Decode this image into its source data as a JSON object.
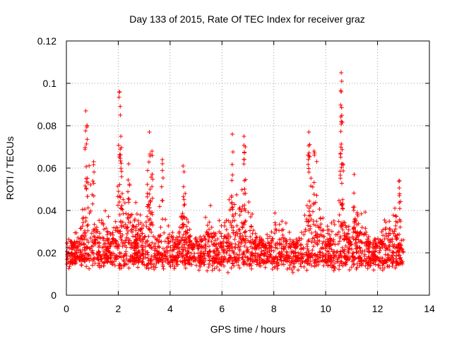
{
  "chart_data": {
    "type": "scatter",
    "title": "Day 133 of 2015, Rate Of TEC Index for receiver graz",
    "xlabel": "GPS time / hours",
    "ylabel": "ROTI / TECUs",
    "xlim": [
      0,
      14
    ],
    "ylim": [
      0,
      0.12
    ],
    "xticks": [
      "0",
      "2",
      "4",
      "6",
      "8",
      "10",
      "12",
      "14"
    ],
    "yticks": [
      "0",
      "0.02",
      "0.04",
      "0.06",
      "0.08",
      "0.1",
      "0.12"
    ],
    "xtick_values": [
      0,
      2,
      4,
      6,
      8,
      10,
      12,
      14
    ],
    "ytick_values": [
      0,
      0.02,
      0.04,
      0.06,
      0.08,
      0.1,
      0.12
    ],
    "grid": true,
    "marker": "+",
    "color": "#ff0000",
    "series": [
      {
        "name": "ROTI",
        "description": "dense band of points from 0 to 13 h, mostly 0.008-0.03 TECU/s with peaks",
        "peaks": [
          {
            "x": 0.75,
            "y": 0.087
          },
          {
            "x": 0.8,
            "y": 0.08
          },
          {
            "x": 1.05,
            "y": 0.063
          },
          {
            "x": 2.05,
            "y": 0.096
          },
          {
            "x": 2.08,
            "y": 0.085
          },
          {
            "x": 2.1,
            "y": 0.075
          },
          {
            "x": 2.4,
            "y": 0.062
          },
          {
            "x": 3.2,
            "y": 0.077
          },
          {
            "x": 3.3,
            "y": 0.068
          },
          {
            "x": 3.7,
            "y": 0.064
          },
          {
            "x": 4.5,
            "y": 0.061
          },
          {
            "x": 6.4,
            "y": 0.076
          },
          {
            "x": 6.85,
            "y": 0.075
          },
          {
            "x": 6.9,
            "y": 0.07
          },
          {
            "x": 9.35,
            "y": 0.077
          },
          {
            "x": 9.55,
            "y": 0.068
          },
          {
            "x": 10.6,
            "y": 0.105
          },
          {
            "x": 10.62,
            "y": 0.101
          },
          {
            "x": 10.6,
            "y": 0.096
          },
          {
            "x": 10.6,
            "y": 0.082
          },
          {
            "x": 10.65,
            "y": 0.062
          },
          {
            "x": 11.1,
            "y": 0.057
          },
          {
            "x": 12.85,
            "y": 0.054
          }
        ]
      }
    ]
  }
}
